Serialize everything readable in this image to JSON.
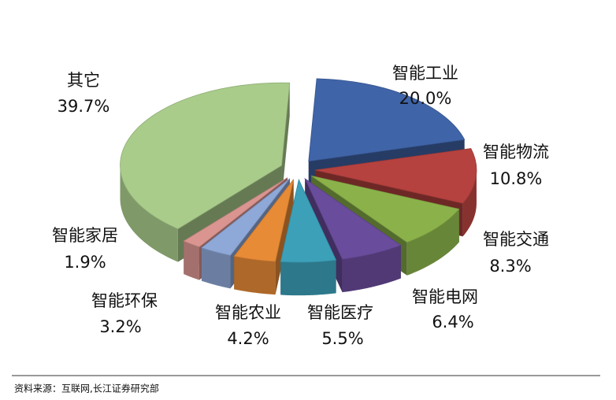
{
  "chart_data": {
    "type": "pie",
    "categories": [
      "智能工业",
      "智能物流",
      "智能交通",
      "智能电网",
      "智能医疗",
      "智能农业",
      "智能环保",
      "智能家居",
      "其它"
    ],
    "values": [
      20.0,
      10.8,
      8.3,
      6.4,
      5.5,
      4.2,
      3.2,
      1.9,
      39.7
    ],
    "value_labels": [
      "20.0%",
      "10.8%",
      "8.3%",
      "6.4%",
      "5.5%",
      "4.2%",
      "3.2%",
      "1.9%",
      "39.7%"
    ],
    "colors": [
      "#4064a8",
      "#b5423f",
      "#8bb24a",
      "#6a4c9c",
      "#3ca0b9",
      "#e88b36",
      "#8ea8d8",
      "#da9591",
      "#a9cc8b"
    ],
    "source": "资料来源：互联网,长江证券研究部"
  }
}
